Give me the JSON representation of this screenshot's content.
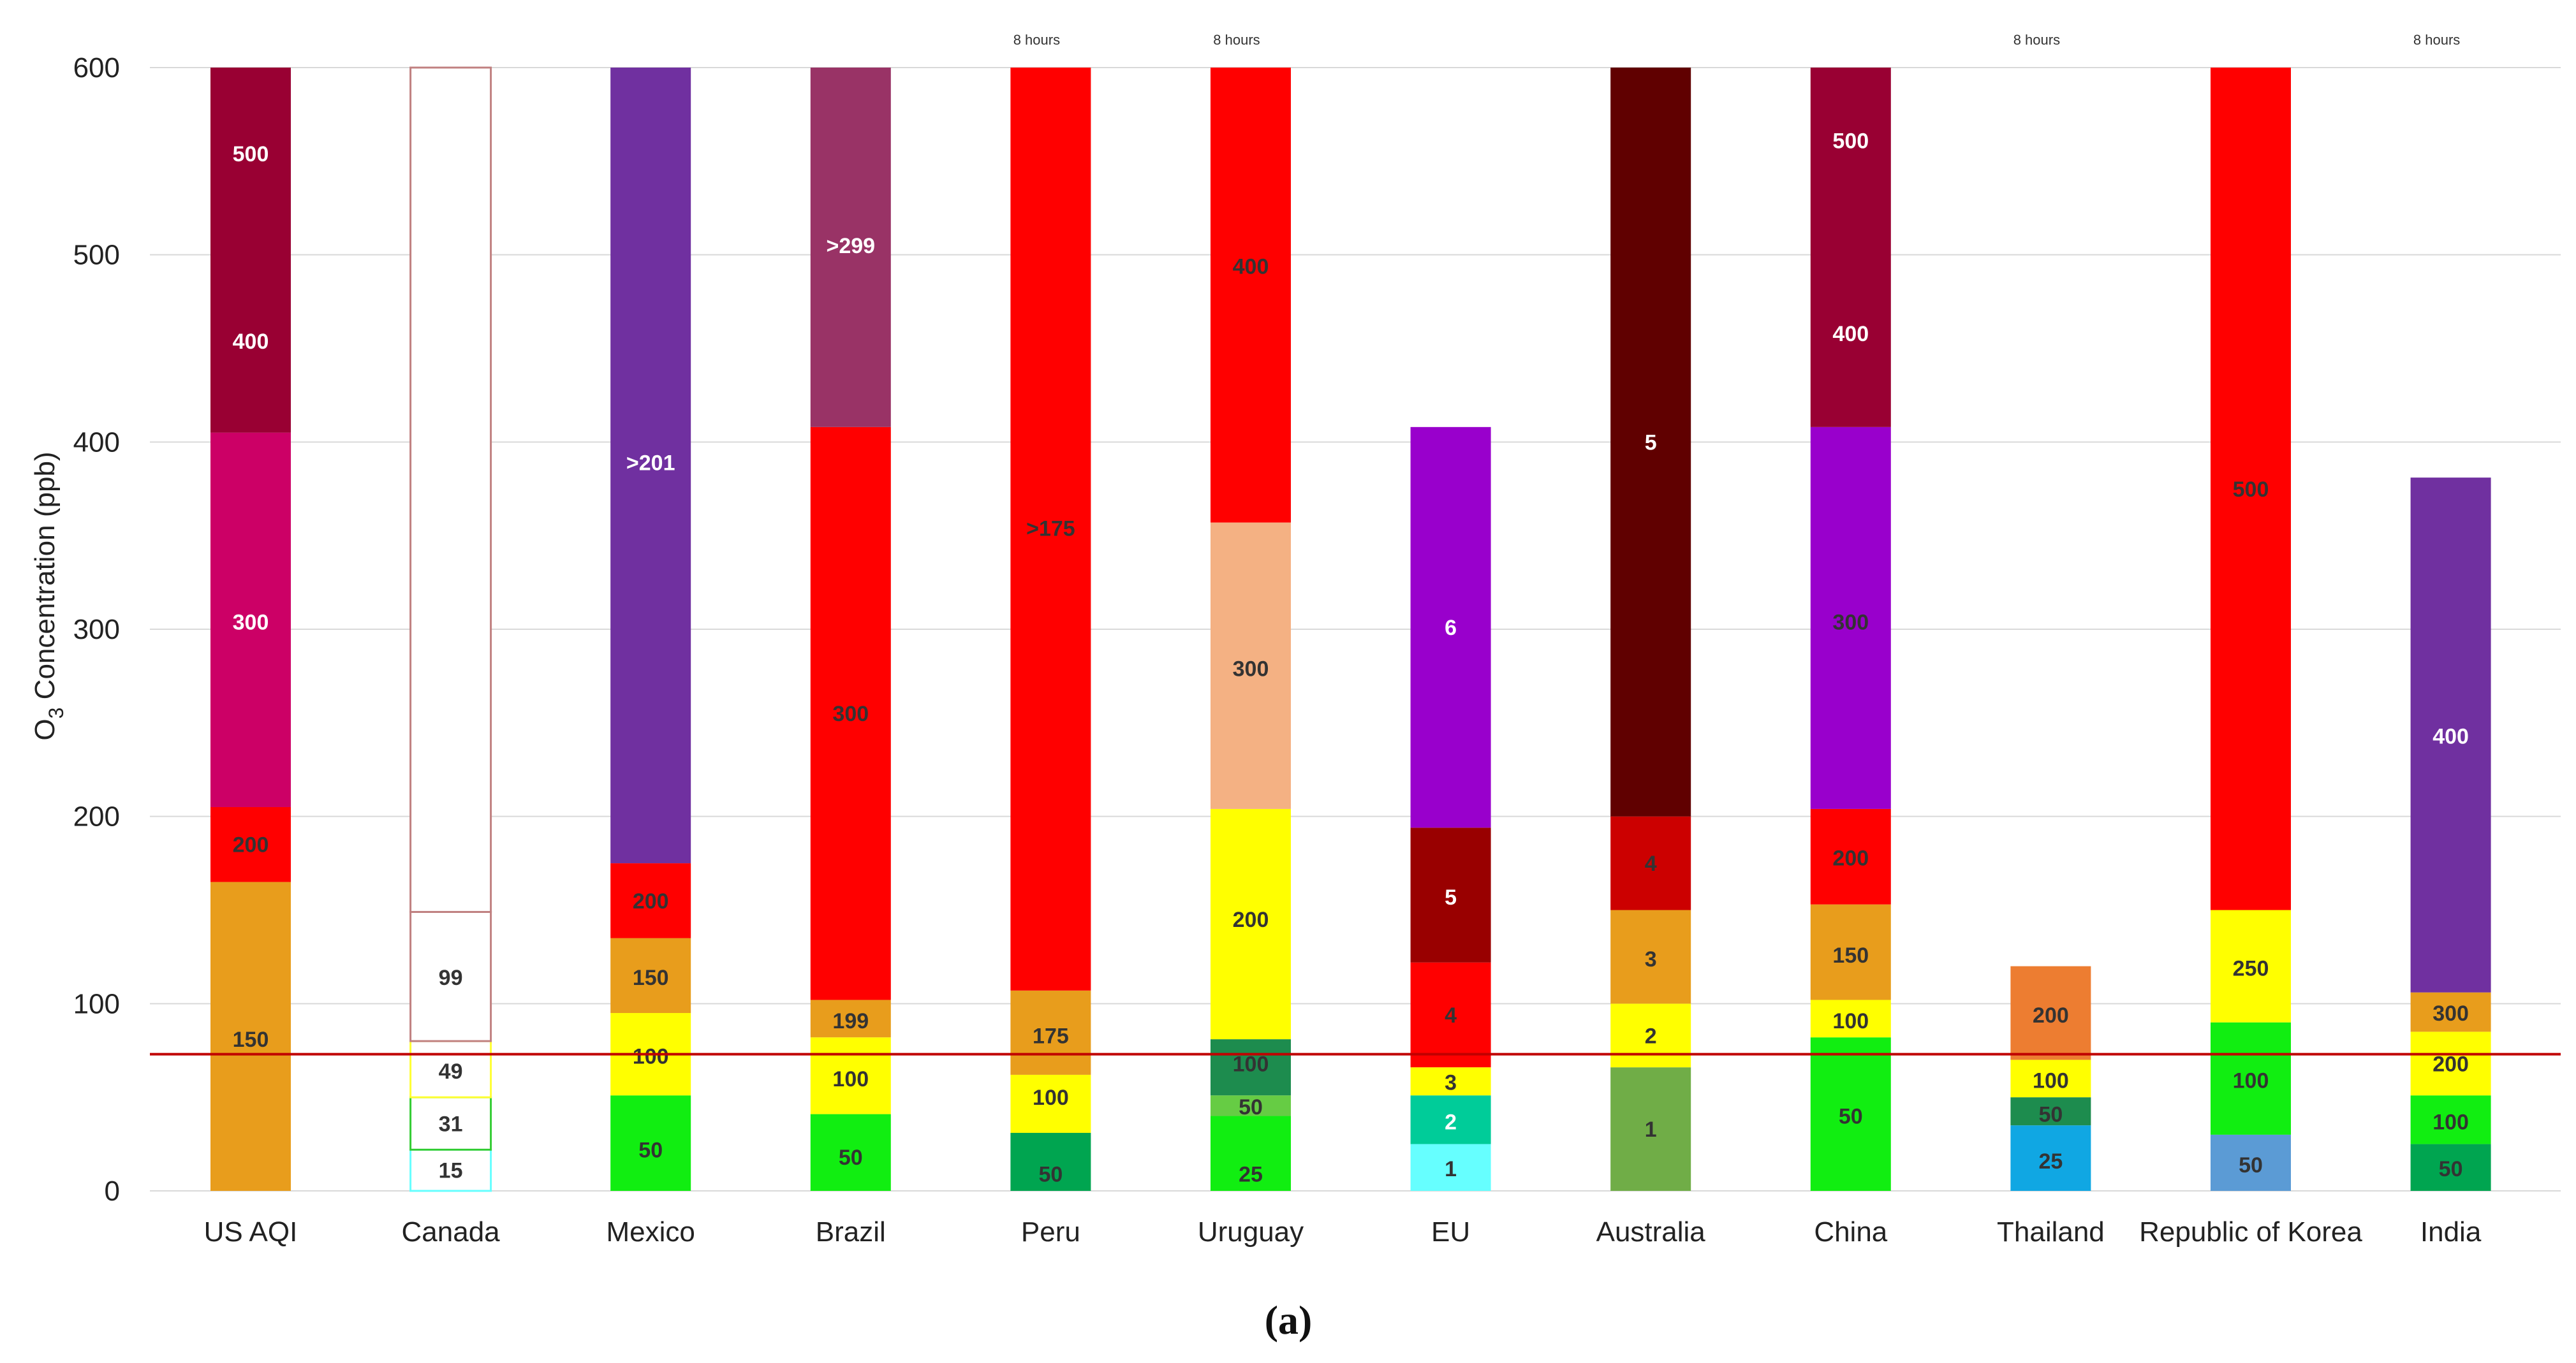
{
  "figure_label": "(a)",
  "chart_data": {
    "type": "bar",
    "stacked": true,
    "title": "",
    "xlabel": "",
    "ylabel": "O3 Concentration (ppb)",
    "ylabel_main": "O",
    "ylabel_sub": "3",
    "ylabel_rest": " Concentration (ppb)",
    "ylim": [
      0,
      600
    ],
    "yticks": [
      0,
      100,
      200,
      300,
      400,
      500,
      600
    ],
    "grid": true,
    "reference_line": {
      "value": 73,
      "color": "#c00000"
    },
    "categories": [
      {
        "name": "US AQI",
        "segments": [
          {
            "from": 0,
            "to": 165,
            "color": "#e89d1c",
            "label": "150",
            "label_at": 81,
            "text_color": "#333333"
          },
          {
            "from": 165,
            "to": 205,
            "color": "#ff0000",
            "label": "200",
            "label_at": 185,
            "text_color": "#333333"
          },
          {
            "from": 205,
            "to": 405,
            "color": "#cc0066",
            "label": "300",
            "label_at": 304,
            "text_color": "#ffffff"
          },
          {
            "from": 405,
            "to": 600,
            "color": "#990033",
            "label": "400",
            "label_at": 454,
            "text_color": "#ffffff"
          },
          {
            "from": 600,
            "to": 600,
            "color": "#990033",
            "label": "500",
            "label_at": 554,
            "text_color": "#ffffff"
          }
        ]
      },
      {
        "name": "Canada",
        "outline": true,
        "segments": [
          {
            "from": 0,
            "to": 22,
            "color": "#ffffff",
            "border": "#66ffff",
            "label": "15",
            "label_at": 11,
            "text_color": "#333333"
          },
          {
            "from": 22,
            "to": 50,
            "color": "#ffffff",
            "border": "#33cc33",
            "label": "31",
            "label_at": 36,
            "text_color": "#333333"
          },
          {
            "from": 50,
            "to": 80,
            "color": "#ffffff",
            "border": "#ffff33",
            "label": "49",
            "label_at": 64,
            "text_color": "#333333"
          },
          {
            "from": 80,
            "to": 149,
            "color": "#ffffff",
            "border": "#c08080",
            "label": "99",
            "label_at": 114,
            "text_color": "#333333"
          },
          {
            "from": 149,
            "to": 600,
            "color": "#ffffff",
            "border": "#c08080",
            "label": "",
            "label_at": 0,
            "text_color": "#333333"
          }
        ]
      },
      {
        "name": "Mexico",
        "segments": [
          {
            "from": 0,
            "to": 51,
            "color": "#11ee11",
            "label": "50",
            "label_at": 22,
            "text_color": "#333333"
          },
          {
            "from": 51,
            "to": 95,
            "color": "#ffff00",
            "label": "100",
            "label_at": 72,
            "text_color": "#333333"
          },
          {
            "from": 95,
            "to": 135,
            "color": "#e89d1c",
            "label": "150",
            "label_at": 114,
            "text_color": "#333333"
          },
          {
            "from": 135,
            "to": 175,
            "color": "#ff0000",
            "label": "200",
            "label_at": 155,
            "text_color": "#333333"
          },
          {
            "from": 175,
            "to": 600,
            "color": "#7030a0",
            "label": ">201",
            "label_at": 389,
            "text_color": "#ffffff"
          }
        ]
      },
      {
        "name": "Brazil",
        "segments": [
          {
            "from": 0,
            "to": 41,
            "color": "#11ee11",
            "label": "50",
            "label_at": 18,
            "text_color": "#333333"
          },
          {
            "from": 41,
            "to": 82,
            "color": "#ffff00",
            "label": "100",
            "label_at": 60,
            "text_color": "#333333"
          },
          {
            "from": 82,
            "to": 102,
            "color": "#e89d1c",
            "label": "199",
            "label_at": 91,
            "text_color": "#333333"
          },
          {
            "from": 102,
            "to": 408,
            "color": "#ff0000",
            "label": "300",
            "label_at": 255,
            "text_color": "#333333"
          },
          {
            "from": 408,
            "to": 600,
            "color": "#993366",
            "label": ">299",
            "label_at": 505,
            "text_color": "#ffffff"
          }
        ]
      },
      {
        "name": "Peru",
        "note": "8 hours",
        "segments": [
          {
            "from": 0,
            "to": 31,
            "color": "#00a550",
            "label": "50",
            "label_at": 9,
            "text_color": "#333333"
          },
          {
            "from": 31,
            "to": 62,
            "color": "#ffff00",
            "label": "100",
            "label_at": 50,
            "text_color": "#333333"
          },
          {
            "from": 62,
            "to": 107,
            "color": "#e89d1c",
            "label": "175",
            "label_at": 83,
            "text_color": "#333333"
          },
          {
            "from": 107,
            "to": 600,
            "color": "#ff0000",
            "label": ">175",
            "label_at": 354,
            "text_color": "#333333"
          }
        ]
      },
      {
        "name": "Uruguay",
        "note": "8 hours",
        "segments": [
          {
            "from": 0,
            "to": 40,
            "color": "#11ee11",
            "label": "25",
            "label_at": 9,
            "text_color": "#333333"
          },
          {
            "from": 40,
            "to": 51,
            "color": "#66cc44",
            "label": "50",
            "label_at": 45,
            "text_color": "#333333"
          },
          {
            "from": 51,
            "to": 81,
            "color": "#1d8c4e",
            "label": "100",
            "label_at": 68,
            "text_color": "#333333"
          },
          {
            "from": 81,
            "to": 204,
            "color": "#ffff00",
            "label": "200",
            "label_at": 145,
            "text_color": "#333333"
          },
          {
            "from": 204,
            "to": 357,
            "color": "#f4b183",
            "label": "300",
            "label_at": 279,
            "text_color": "#333333"
          },
          {
            "from": 357,
            "to": 600,
            "color": "#ff0000",
            "label": "400",
            "label_at": 494,
            "text_color": "#333333"
          }
        ]
      },
      {
        "name": "EU",
        "segments": [
          {
            "from": 0,
            "to": 25,
            "color": "#66ffff",
            "label": "1",
            "label_at": 12,
            "text_color": "#333333"
          },
          {
            "from": 25,
            "to": 51,
            "color": "#00cc99",
            "label": "2",
            "label_at": 37,
            "text_color": "#ffffff"
          },
          {
            "from": 51,
            "to": 66,
            "color": "#ffff00",
            "label": "3",
            "label_at": 58,
            "text_color": "#333333"
          },
          {
            "from": 66,
            "to": 122,
            "color": "#ff0000",
            "label": "4",
            "label_at": 94,
            "text_color": "#333333"
          },
          {
            "from": 122,
            "to": 194,
            "color": "#990000",
            "label": "5",
            "label_at": 157,
            "text_color": "#ffffff"
          },
          {
            "from": 194,
            "to": 408,
            "color": "#9900cc",
            "label": "6",
            "label_at": 301,
            "text_color": "#ffffff"
          }
        ]
      },
      {
        "name": "Australia",
        "segments": [
          {
            "from": 0,
            "to": 66,
            "color": "#70ad47",
            "label": "1",
            "label_at": 33,
            "text_color": "#333333"
          },
          {
            "from": 66,
            "to": 100,
            "color": "#ffff00",
            "label": "2",
            "label_at": 83,
            "text_color": "#333333"
          },
          {
            "from": 100,
            "to": 150,
            "color": "#e89d1c",
            "label": "3",
            "label_at": 124,
            "text_color": "#333333"
          },
          {
            "from": 150,
            "to": 200,
            "color": "#cc0000",
            "label": "4",
            "label_at": 175,
            "text_color": "#333333"
          },
          {
            "from": 200,
            "to": 600,
            "color": "#600000",
            "label": "5",
            "label_at": 400,
            "text_color": "#ffffff"
          }
        ]
      },
      {
        "name": "China",
        "segments": [
          {
            "from": 0,
            "to": 82,
            "color": "#11ee11",
            "label": "50",
            "label_at": 40,
            "text_color": "#333333"
          },
          {
            "from": 82,
            "to": 102,
            "color": "#ffff00",
            "label": "100",
            "label_at": 91,
            "text_color": "#333333"
          },
          {
            "from": 102,
            "to": 153,
            "color": "#e89d1c",
            "label": "150",
            "label_at": 126,
            "text_color": "#333333"
          },
          {
            "from": 153,
            "to": 204,
            "color": "#ff0000",
            "label": "200",
            "label_at": 178,
            "text_color": "#333333"
          },
          {
            "from": 204,
            "to": 408,
            "color": "#9900cc",
            "label": "300",
            "label_at": 304,
            "text_color": "#333333"
          },
          {
            "from": 408,
            "to": 600,
            "color": "#990033",
            "label": "400",
            "label_at": 458,
            "text_color": "#ffffff"
          },
          {
            "from": 600,
            "to": 600,
            "color": "#990033",
            "label": "500",
            "label_at": 561,
            "text_color": "#ffffff"
          }
        ]
      },
      {
        "name": "Thailand",
        "note": "8 hours",
        "segments": [
          {
            "from": 0,
            "to": 35,
            "color": "#10a7e3",
            "label": "25",
            "label_at": 16,
            "text_color": "#333333"
          },
          {
            "from": 35,
            "to": 50,
            "color": "#1d8c4e",
            "label": "50",
            "label_at": 41,
            "text_color": "#333333"
          },
          {
            "from": 50,
            "to": 70,
            "color": "#ffff00",
            "label": "100",
            "label_at": 59,
            "text_color": "#333333"
          },
          {
            "from": 70,
            "to": 120,
            "color": "#ed7d31",
            "label": "200",
            "label_at": 94,
            "text_color": "#333333"
          }
        ]
      },
      {
        "name": "Republic of Korea",
        "segments": [
          {
            "from": 0,
            "to": 30,
            "color": "#5b9bd5",
            "label": "50",
            "label_at": 14,
            "text_color": "#333333"
          },
          {
            "from": 30,
            "to": 90,
            "color": "#11ee11",
            "label": "100",
            "label_at": 59,
            "text_color": "#333333"
          },
          {
            "from": 90,
            "to": 150,
            "color": "#ffff00",
            "label": "250",
            "label_at": 119,
            "text_color": "#333333"
          },
          {
            "from": 150,
            "to": 600,
            "color": "#ff0000",
            "label": "500",
            "label_at": 375,
            "text_color": "#333333"
          }
        ]
      },
      {
        "name": "India",
        "note": "8 hours",
        "segments": [
          {
            "from": 0,
            "to": 25,
            "color": "#00a550",
            "label": "50",
            "label_at": 12,
            "text_color": "#333333"
          },
          {
            "from": 25,
            "to": 51,
            "color": "#11ee11",
            "label": "100",
            "label_at": 37,
            "text_color": "#333333"
          },
          {
            "from": 51,
            "to": 85,
            "color": "#ffff00",
            "label": "200",
            "label_at": 68,
            "text_color": "#333333"
          },
          {
            "from": 85,
            "to": 106,
            "color": "#e89d1c",
            "label": "300",
            "label_at": 95,
            "text_color": "#333333"
          },
          {
            "from": 106,
            "to": 381,
            "color": "#7030a0",
            "label": "400",
            "label_at": 243,
            "text_color": "#ffffff"
          }
        ]
      }
    ]
  }
}
